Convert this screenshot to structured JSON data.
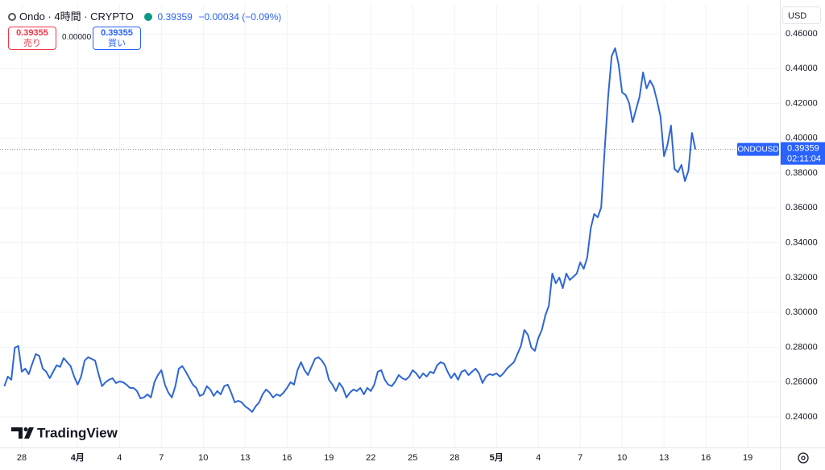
{
  "header": {
    "title": "Ondo · 4時間 · CRYPTO",
    "change": "−0.00034 (−0.09%)",
    "sell_price": 0.39355,
    "sell_label": "売り",
    "spread": "0.00000",
    "buy_price": 0.39355,
    "buy_label": "買い",
    "currency": "USD",
    "logo": "TradingView"
  },
  "chart_data": {
    "type": "line",
    "color": "#2f66d6",
    "grid": true,
    "symbol": "ONDOUSD",
    "last_price": 0.39359,
    "countdown": "02:11:04",
    "xlim": [
      26.44,
      82.3
    ],
    "ylim": [
      0.2224,
      0.4771
    ],
    "xticks": [
      28,
      {
        "value": 32,
        "label": "4月"
      },
      {
        "value": 35,
        "label": "4"
      },
      {
        "value": 38,
        "label": "7"
      },
      {
        "value": 41,
        "label": "10"
      },
      {
        "value": 44,
        "label": "13"
      },
      {
        "value": 47,
        "label": "16"
      },
      {
        "value": 50,
        "label": "19"
      },
      {
        "value": 53,
        "label": "22"
      },
      {
        "value": 56,
        "label": "25"
      },
      {
        "value": 59,
        "label": "28"
      },
      {
        "value": 62,
        "label": "5月"
      },
      {
        "value": 65,
        "label": "4"
      },
      {
        "value": 68,
        "label": "7"
      },
      {
        "value": 71,
        "label": "10"
      },
      {
        "value": 74,
        "label": "13"
      },
      {
        "value": 77,
        "label": "16"
      },
      {
        "value": 80,
        "label": "19"
      }
    ],
    "yticks": [
      {
        "value": 0.24,
        "label": "0.24000"
      },
      {
        "value": 0.26,
        "label": "0.26000"
      },
      {
        "value": 0.28,
        "label": "0.28000"
      },
      {
        "value": 0.3,
        "label": "0.30000"
      },
      {
        "value": 0.32,
        "label": "0.32000"
      },
      {
        "value": 0.34,
        "label": "0.34000"
      },
      {
        "value": 0.36,
        "label": "0.36000"
      },
      {
        "value": 0.38,
        "label": "0.38000"
      },
      {
        "value": 0.4,
        "label": "0.40000"
      },
      {
        "value": 0.42,
        "label": "0.42000"
      },
      {
        "value": 0.44,
        "label": "0.44000"
      },
      {
        "value": 0.46,
        "label": "0.46000"
      }
    ],
    "x": [
      26.75,
      27,
      27.25,
      27.5,
      27.75,
      28,
      28.25,
      28.5,
      28.75,
      29,
      29.25,
      29.5,
      29.75,
      30,
      30.25,
      30.5,
      30.75,
      31,
      31.25,
      31.5,
      31.75,
      32,
      32.25,
      32.5,
      32.75,
      33,
      33.25,
      33.5,
      33.75,
      34,
      34.25,
      34.5,
      34.75,
      35,
      35.25,
      35.5,
      35.75,
      36,
      36.25,
      36.5,
      36.75,
      37,
      37.25,
      37.5,
      37.75,
      38,
      38.25,
      38.5,
      38.75,
      39,
      39.25,
      39.5,
      39.75,
      40,
      40.25,
      40.5,
      40.75,
      41,
      41.25,
      41.5,
      41.75,
      42,
      42.25,
      42.5,
      42.75,
      43,
      43.25,
      43.5,
      43.75,
      44,
      44.25,
      44.5,
      44.75,
      45,
      45.25,
      45.5,
      45.75,
      46,
      46.25,
      46.5,
      46.75,
      47,
      47.25,
      47.5,
      47.75,
      48,
      48.25,
      48.5,
      48.75,
      49,
      49.25,
      49.5,
      49.75,
      50,
      50.25,
      50.5,
      50.75,
      51,
      51.25,
      51.5,
      51.75,
      52,
      52.25,
      52.5,
      52.75,
      53,
      53.25,
      53.5,
      53.75,
      54,
      54.25,
      54.5,
      54.75,
      55,
      55.25,
      55.5,
      55.75,
      56,
      56.25,
      56.5,
      56.75,
      57,
      57.25,
      57.5,
      57.75,
      58,
      58.25,
      58.5,
      58.75,
      59,
      59.25,
      59.5,
      59.75,
      60,
      60.25,
      60.5,
      60.75,
      61,
      61.25,
      61.5,
      61.75,
      62,
      62.25,
      62.5,
      62.75,
      63,
      63.25,
      63.5,
      63.75,
      64,
      64.25,
      64.5,
      64.75,
      65,
      65.25,
      65.5,
      65.75,
      66,
      66.25,
      66.5,
      66.75,
      67,
      67.25,
      67.5,
      67.75,
      68,
      68.25,
      68.5,
      68.75,
      69,
      69.25,
      69.5,
      69.75,
      70,
      70.25,
      70.5,
      70.75,
      71,
      71.25,
      71.5,
      71.75,
      72,
      72.25,
      72.5,
      72.75,
      73,
      73.25,
      73.5,
      73.75,
      74,
      74.25,
      74.5,
      74.75,
      75,
      75.25,
      75.5,
      75.75,
      76,
      76.25
    ],
    "values": [
      0.2576,
      0.2631,
      0.2613,
      0.2797,
      0.2807,
      0.2659,
      0.2677,
      0.2645,
      0.2705,
      0.276,
      0.2751,
      0.2677,
      0.2659,
      0.2622,
      0.2659,
      0.2696,
      0.2687,
      0.2737,
      0.2714,
      0.2691,
      0.2631,
      0.2585,
      0.2631,
      0.2723,
      0.2742,
      0.2733,
      0.2723,
      0.2645,
      0.2576,
      0.2599,
      0.2613,
      0.2622,
      0.2594,
      0.2603,
      0.2599,
      0.2585,
      0.2566,
      0.2566,
      0.2548,
      0.2506,
      0.2511,
      0.2529,
      0.2511,
      0.2599,
      0.264,
      0.2668,
      0.2585,
      0.2539,
      0.2511,
      0.2576,
      0.2677,
      0.2691,
      0.2659,
      0.2622,
      0.2585,
      0.2566,
      0.252,
      0.2529,
      0.2576,
      0.2557,
      0.252,
      0.2548,
      0.2529,
      0.2576,
      0.2585,
      0.2539,
      0.2483,
      0.2492,
      0.2483,
      0.246,
      0.2446,
      0.2428,
      0.246,
      0.2483,
      0.2529,
      0.2557,
      0.2539,
      0.2511,
      0.2529,
      0.252,
      0.2539,
      0.2566,
      0.2599,
      0.2585,
      0.2668,
      0.2714,
      0.2668,
      0.264,
      0.2687,
      0.2733,
      0.2742,
      0.2723,
      0.2691,
      0.2613,
      0.2585,
      0.2548,
      0.2594,
      0.2566,
      0.2511,
      0.2539,
      0.2557,
      0.2548,
      0.2566,
      0.2529,
      0.2566,
      0.2548,
      0.2585,
      0.2659,
      0.2668,
      0.2613,
      0.2585,
      0.2576,
      0.2603,
      0.264,
      0.2622,
      0.2613,
      0.2631,
      0.2668,
      0.265,
      0.2622,
      0.265,
      0.2631,
      0.2659,
      0.265,
      0.2696,
      0.2714,
      0.2705,
      0.2659,
      0.2622,
      0.265,
      0.2613,
      0.2659,
      0.2668,
      0.264,
      0.2659,
      0.2677,
      0.265,
      0.2594,
      0.2631,
      0.2645,
      0.264,
      0.265,
      0.2631,
      0.265,
      0.2677,
      0.2696,
      0.2714,
      0.276,
      0.2807,
      0.2899,
      0.2871,
      0.2797,
      0.2779,
      0.2853,
      0.2899,
      0.2982,
      0.3038,
      0.3223,
      0.3167,
      0.32,
      0.3139,
      0.3223,
      0.3186,
      0.3204,
      0.3223,
      0.3287,
      0.325,
      0.3315,
      0.3481,
      0.3565,
      0.3546,
      0.3602,
      0.3934,
      0.4239,
      0.4471,
      0.4517,
      0.4424,
      0.4263,
      0.4249,
      0.4203,
      0.4092,
      0.4166,
      0.4239,
      0.4378,
      0.4286,
      0.4332,
      0.4295,
      0.4216,
      0.4124,
      0.3897,
      0.3962,
      0.4073,
      0.3824,
      0.3805,
      0.3847,
      0.3754,
      0.3814,
      0.4031,
      0.3936
    ]
  }
}
